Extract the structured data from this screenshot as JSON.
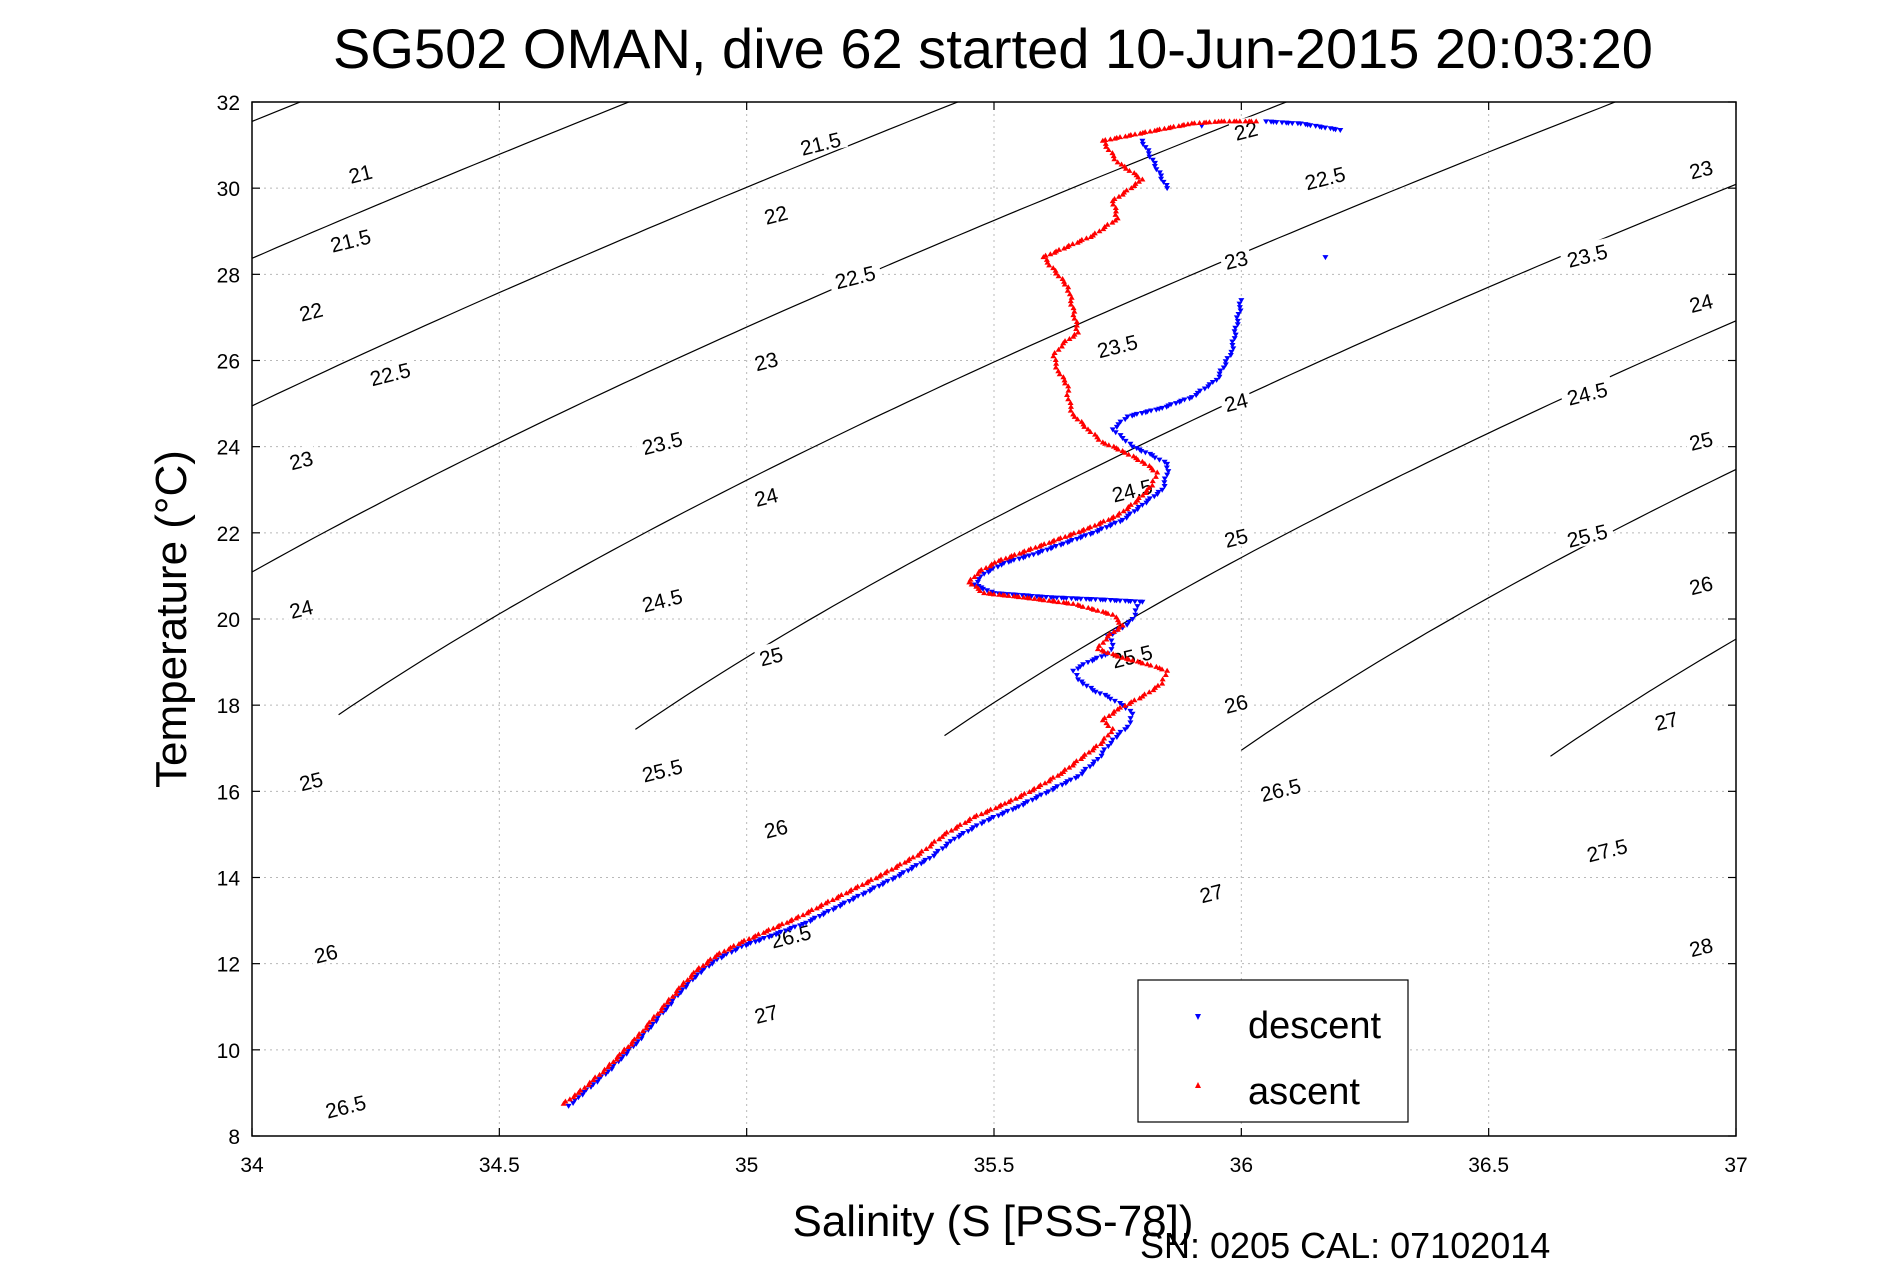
{
  "chart_data": {
    "type": "scatter",
    "title": "SG502 OMAN, dive 62 started 10-Jun-2015 20:03:20",
    "xlabel": "Salinity (S [PSS-78])",
    "ylabel": "Temperature (°C)",
    "xlim": [
      34,
      37
    ],
    "ylim": [
      8,
      32
    ],
    "xticks": [
      "34",
      "34.5",
      "35",
      "35.5",
      "36",
      "36.5",
      "37"
    ],
    "yticks": [
      "8",
      "10",
      "12",
      "14",
      "16",
      "18",
      "20",
      "22",
      "24",
      "26",
      "28",
      "30",
      "32"
    ],
    "grid": true,
    "legend_position": "bottom-right",
    "footer": "SN: 0205  CAL: 07102014",
    "density_contours": {
      "levels": [
        "21",
        "21.5",
        "22",
        "22.5",
        "23",
        "23.5",
        "24",
        "24.5",
        "25",
        "25.5",
        "26",
        "26.5",
        "27",
        "27.5",
        "28"
      ],
      "labels": [
        {
          "text": "21",
          "s": 34.22,
          "t": 30.3
        },
        {
          "text": "21.5",
          "s": 34.2,
          "t": 28.75
        },
        {
          "text": "22",
          "s": 34.12,
          "t": 27.1
        },
        {
          "text": "22.5",
          "s": 34.28,
          "t": 25.65
        },
        {
          "text": "23",
          "s": 34.1,
          "t": 23.65
        },
        {
          "text": "24",
          "s": 34.1,
          "t": 20.2
        },
        {
          "text": "25",
          "s": 34.12,
          "t": 16.2
        },
        {
          "text": "26",
          "s": 34.15,
          "t": 12.2
        },
        {
          "text": "26.5",
          "s": 34.19,
          "t": 8.65
        },
        {
          "text": "21.5",
          "s": 35.15,
          "t": 31.0
        },
        {
          "text": "22",
          "s": 35.06,
          "t": 29.35
        },
        {
          "text": "22.5",
          "s": 35.22,
          "t": 27.9
        },
        {
          "text": "23",
          "s": 35.04,
          "t": 25.95
        },
        {
          "text": "23.5",
          "s": 34.83,
          "t": 24.05
        },
        {
          "text": "24",
          "s": 35.04,
          "t": 22.8
        },
        {
          "text": "24.5",
          "s": 34.83,
          "t": 20.4
        },
        {
          "text": "25",
          "s": 35.05,
          "t": 19.1
        },
        {
          "text": "25.5",
          "s": 34.83,
          "t": 16.45
        },
        {
          "text": "26",
          "s": 35.06,
          "t": 15.1
        },
        {
          "text": "26.5",
          "s": 35.09,
          "t": 12.6
        },
        {
          "text": "27",
          "s": 35.04,
          "t": 10.8
        },
        {
          "text": "22",
          "s": 36.01,
          "t": 31.3
        },
        {
          "text": "22.5",
          "s": 36.17,
          "t": 30.2
        },
        {
          "text": "23",
          "s": 35.99,
          "t": 28.3
        },
        {
          "text": "23.5",
          "s": 35.75,
          "t": 26.3
        },
        {
          "text": "24",
          "s": 35.99,
          "t": 25.0
        },
        {
          "text": "24.5",
          "s": 35.78,
          "t": 22.95
        },
        {
          "text": "25",
          "s": 35.99,
          "t": 21.85
        },
        {
          "text": "25.5",
          "s": 35.78,
          "t": 19.1
        },
        {
          "text": "26",
          "s": 35.99,
          "t": 18.0
        },
        {
          "text": "26.5",
          "s": 36.08,
          "t": 16.0
        },
        {
          "text": "27",
          "s": 35.94,
          "t": 13.6
        },
        {
          "text": "23",
          "s": 36.93,
          "t": 30.4
        },
        {
          "text": "23.5",
          "s": 36.7,
          "t": 28.4
        },
        {
          "text": "24",
          "s": 36.93,
          "t": 27.3
        },
        {
          "text": "24.5",
          "s": 36.7,
          "t": 25.2
        },
        {
          "text": "25",
          "s": 36.93,
          "t": 24.1
        },
        {
          "text": "25.5",
          "s": 36.7,
          "t": 21.9
        },
        {
          "text": "26",
          "s": 36.93,
          "t": 20.75
        },
        {
          "text": "27",
          "s": 36.86,
          "t": 17.6
        },
        {
          "text": "27.5",
          "s": 36.74,
          "t": 14.6
        },
        {
          "text": "28",
          "s": 36.93,
          "t": 12.35
        }
      ]
    },
    "series": [
      {
        "name": "descent",
        "color": "#0000ff",
        "marker": "triangle-down",
        "points": [
          [
            34.64,
            8.7
          ],
          [
            34.66,
            8.9
          ],
          [
            34.69,
            9.2
          ],
          [
            34.72,
            9.5
          ],
          [
            34.75,
            9.85
          ],
          [
            34.78,
            10.2
          ],
          [
            34.81,
            10.6
          ],
          [
            34.84,
            11.0
          ],
          [
            34.87,
            11.4
          ],
          [
            34.9,
            11.75
          ],
          [
            34.94,
            12.1
          ],
          [
            34.99,
            12.4
          ],
          [
            35.05,
            12.65
          ],
          [
            35.12,
            12.95
          ],
          [
            35.18,
            13.3
          ],
          [
            35.24,
            13.65
          ],
          [
            35.3,
            14.0
          ],
          [
            35.37,
            14.45
          ],
          [
            35.42,
            14.9
          ],
          [
            35.48,
            15.3
          ],
          [
            35.55,
            15.65
          ],
          [
            35.61,
            16.0
          ],
          [
            35.67,
            16.35
          ],
          [
            35.71,
            16.75
          ],
          [
            35.74,
            17.2
          ],
          [
            35.77,
            17.5
          ],
          [
            35.78,
            17.8
          ],
          [
            35.76,
            18.0
          ],
          [
            35.73,
            18.2
          ],
          [
            35.7,
            18.35
          ],
          [
            35.67,
            18.6
          ],
          [
            35.66,
            18.8
          ],
          [
            35.69,
            19.0
          ],
          [
            35.73,
            19.2
          ],
          [
            35.74,
            19.4
          ],
          [
            35.73,
            19.6
          ],
          [
            35.76,
            19.8
          ],
          [
            35.78,
            20.0
          ],
          [
            35.79,
            20.3
          ],
          [
            35.8,
            20.4
          ],
          [
            35.72,
            20.45
          ],
          [
            35.62,
            20.5
          ],
          [
            35.5,
            20.6
          ],
          [
            35.46,
            20.8
          ],
          [
            35.48,
            21.05
          ],
          [
            35.52,
            21.3
          ],
          [
            35.58,
            21.5
          ],
          [
            35.64,
            21.75
          ],
          [
            35.7,
            22.0
          ],
          [
            35.76,
            22.3
          ],
          [
            35.8,
            22.65
          ],
          [
            35.84,
            23.0
          ],
          [
            35.85,
            23.35
          ],
          [
            35.85,
            23.6
          ],
          [
            35.82,
            23.8
          ],
          [
            35.78,
            24.0
          ],
          [
            35.76,
            24.2
          ],
          [
            35.74,
            24.4
          ],
          [
            35.77,
            24.7
          ],
          [
            35.84,
            24.9
          ],
          [
            35.9,
            25.15
          ],
          [
            35.95,
            25.55
          ],
          [
            35.98,
            26.2
          ],
          [
            36.0,
            27.4
          ],
          [
            36.17,
            28.4
          ],
          [
            35.85,
            30.0
          ],
          [
            35.8,
            31.1
          ],
          [
            35.92,
            31.45
          ],
          [
            36.05,
            31.55
          ],
          [
            36.12,
            31.5
          ],
          [
            36.2,
            31.35
          ]
        ]
      },
      {
        "name": "ascent",
        "color": "#ff0000",
        "marker": "triangle-up",
        "points": [
          [
            34.63,
            8.75
          ],
          [
            34.66,
            9.0
          ],
          [
            34.69,
            9.3
          ],
          [
            34.72,
            9.6
          ],
          [
            34.75,
            9.95
          ],
          [
            34.78,
            10.3
          ],
          [
            34.81,
            10.7
          ],
          [
            34.84,
            11.1
          ],
          [
            34.87,
            11.5
          ],
          [
            34.9,
            11.85
          ],
          [
            34.94,
            12.2
          ],
          [
            34.99,
            12.5
          ],
          [
            35.04,
            12.75
          ],
          [
            35.1,
            13.05
          ],
          [
            35.16,
            13.4
          ],
          [
            35.22,
            13.75
          ],
          [
            35.28,
            14.1
          ],
          [
            35.35,
            14.55
          ],
          [
            35.4,
            15.0
          ],
          [
            35.46,
            15.4
          ],
          [
            35.53,
            15.75
          ],
          [
            35.59,
            16.1
          ],
          [
            35.64,
            16.45
          ],
          [
            35.68,
            16.8
          ],
          [
            35.72,
            17.15
          ],
          [
            35.74,
            17.45
          ],
          [
            35.72,
            17.65
          ],
          [
            35.75,
            17.9
          ],
          [
            35.8,
            18.2
          ],
          [
            35.84,
            18.5
          ],
          [
            35.85,
            18.8
          ],
          [
            35.81,
            18.95
          ],
          [
            35.76,
            19.1
          ],
          [
            35.71,
            19.3
          ],
          [
            35.73,
            19.6
          ],
          [
            35.76,
            19.85
          ],
          [
            35.74,
            20.1
          ],
          [
            35.66,
            20.35
          ],
          [
            35.56,
            20.5
          ],
          [
            35.48,
            20.6
          ],
          [
            35.45,
            20.85
          ],
          [
            35.47,
            21.1
          ],
          [
            35.51,
            21.35
          ],
          [
            35.57,
            21.6
          ],
          [
            35.63,
            21.85
          ],
          [
            35.69,
            22.1
          ],
          [
            35.75,
            22.4
          ],
          [
            35.79,
            22.75
          ],
          [
            35.82,
            23.1
          ],
          [
            35.83,
            23.4
          ],
          [
            35.8,
            23.65
          ],
          [
            35.76,
            23.9
          ],
          [
            35.72,
            24.1
          ],
          [
            35.69,
            24.4
          ],
          [
            35.66,
            24.75
          ],
          [
            35.65,
            25.1
          ],
          [
            35.65,
            25.4
          ],
          [
            35.63,
            25.75
          ],
          [
            35.62,
            26.1
          ],
          [
            35.64,
            26.4
          ],
          [
            35.67,
            26.65
          ],
          [
            35.65,
            27.7
          ],
          [
            35.6,
            28.4
          ],
          [
            35.7,
            28.9
          ],
          [
            35.75,
            29.3
          ],
          [
            35.74,
            29.7
          ],
          [
            35.8,
            30.2
          ],
          [
            35.75,
            30.6
          ],
          [
            35.72,
            31.1
          ],
          [
            35.83,
            31.35
          ],
          [
            35.9,
            31.5
          ],
          [
            35.96,
            31.55
          ],
          [
            36.03,
            31.55
          ]
        ]
      }
    ]
  }
}
